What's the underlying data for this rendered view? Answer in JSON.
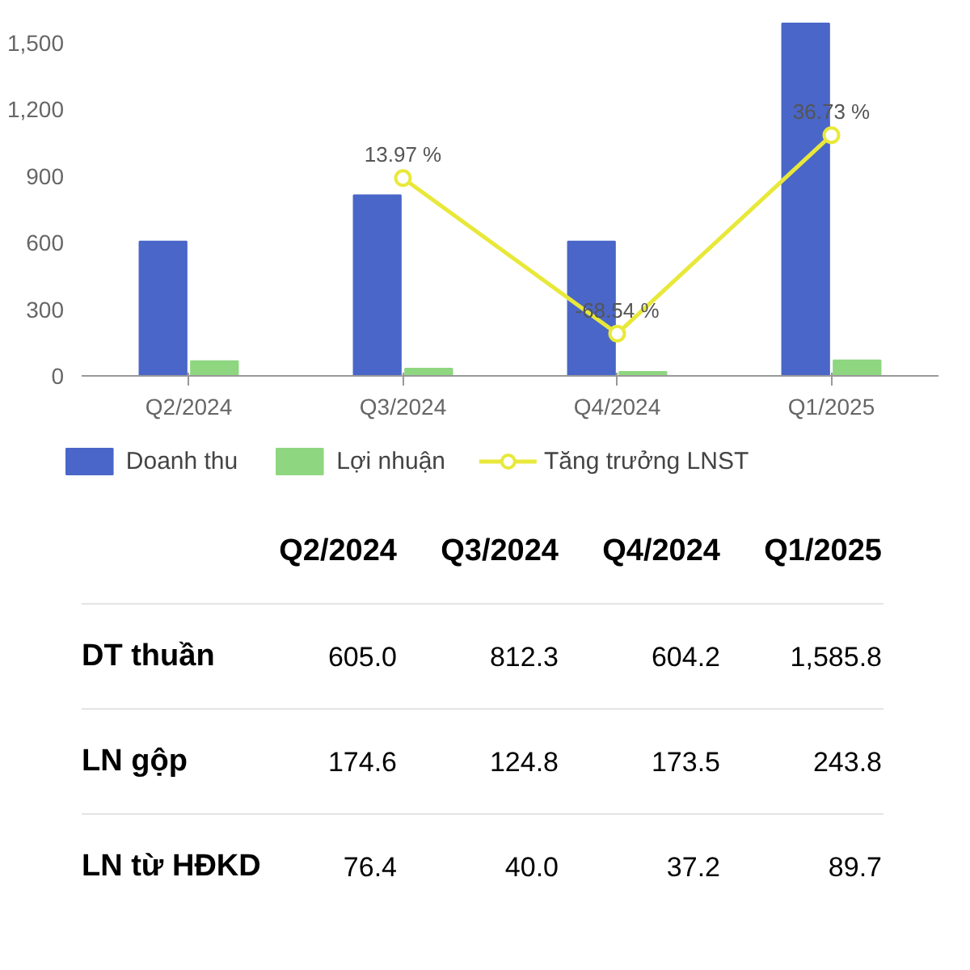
{
  "chart_data": [
    {
      "type": "bar",
      "categories": [
        "Q2/2024",
        "Q3/2024",
        "Q4/2024",
        "Q1/2025"
      ],
      "series": [
        {
          "name": "Doanh thu",
          "color": "#4a66c8",
          "values": [
            605.0,
            812.3,
            604.2,
            1585.8
          ]
        },
        {
          "name": "Lợi nhuận",
          "color": "#8fd680",
          "values": [
            66,
            33,
            18,
            70
          ]
        },
        {
          "name": "Tăng trưởng LNST",
          "type": "line",
          "axis": "y2",
          "color": "#e8e83a",
          "marker": "circle",
          "values": [
            null,
            13.97,
            -68.54,
            36.73
          ],
          "value_labels": [
            null,
            "13.97 %",
            "-68.54 %",
            "36.73 %"
          ]
        }
      ],
      "ylim": [
        0,
        1600
      ],
      "yticks": [
        0,
        {
          "value": 300,
          "label": "300"
        },
        {
          "value": 600,
          "label": "600"
        },
        {
          "value": 900,
          "label": "900"
        },
        {
          "value": 1200,
          "label": "1,200"
        },
        {
          "value": 1500,
          "label": "1,500"
        }
      ],
      "y2lim": [
        -90.9,
        97.7
      ],
      "legend": "bottom"
    },
    {
      "type": "other",
      "categories": [
        "Q2/2024",
        "Q3/2024",
        "Q4/2024",
        "Q1/2025"
      ],
      "series": [
        {
          "name": "DT thuần",
          "values": [
            605.0,
            812.3,
            604.2,
            1585.8
          ],
          "value_labels": [
            "605.0",
            "812.3",
            "604.2",
            "1,585.8"
          ]
        },
        {
          "name": "LN gộp",
          "values": [
            174.6,
            124.8,
            173.5,
            243.8
          ],
          "value_labels": [
            "174.6",
            "124.8",
            "173.5",
            "243.8"
          ]
        },
        {
          "name": "LN từ HĐKD",
          "values": [
            76.4,
            40.0,
            37.2,
            89.7
          ],
          "value_labels": [
            "76.4",
            "40.0",
            "37.2",
            "89.7"
          ]
        }
      ]
    }
  ]
}
